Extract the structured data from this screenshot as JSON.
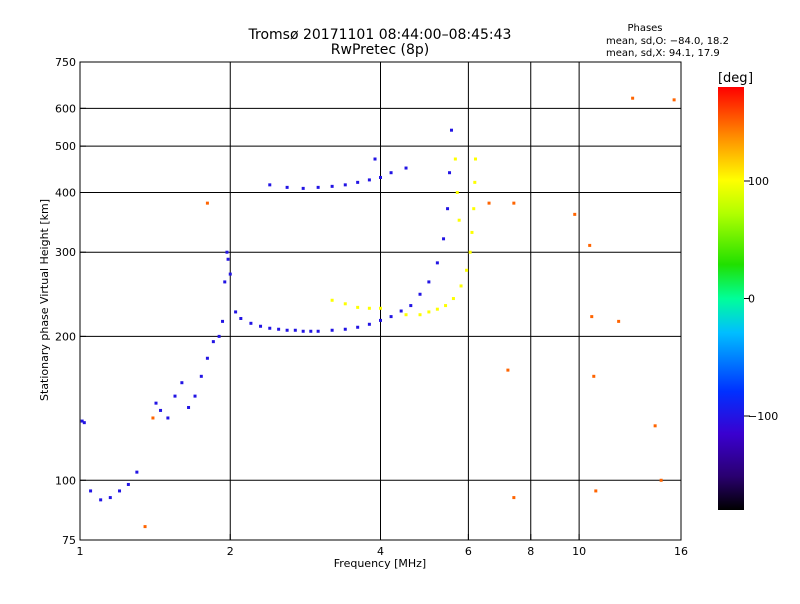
{
  "header": {
    "title": "Tromsø 20171101 08:44:00–08:45:43",
    "subtitle": "RwPretec (8p)"
  },
  "phase_box": {
    "heading": "Phases",
    "line_o": "mean, sd,O: −84.0, 18.2",
    "line_x": "mean, sd,X:  94.1, 17.9"
  },
  "colorbar": {
    "label": "deg",
    "min": -180,
    "max": 180,
    "ticks": [
      {
        "value": 100,
        "label": "100"
      },
      {
        "value": 0,
        "label": "0"
      },
      {
        "value": -100,
        "label": "−100"
      }
    ]
  },
  "chart_data": {
    "type": "scatter",
    "title": "Tromsø 20171101 08:44:00–08:45:43",
    "subtitle": "RwPretec (8p)",
    "xlabel": "Frequency [MHz]",
    "ylabel": "Stationary phase Virtual Height [km]",
    "xscale": "log",
    "yscale": "log",
    "xlim": [
      1,
      16
    ],
    "ylim": [
      75,
      750
    ],
    "grid": true,
    "xticks": [
      {
        "value": 1,
        "label": "1"
      },
      {
        "value": 2,
        "label": "2"
      },
      {
        "value": 4,
        "label": "4"
      },
      {
        "value": 6,
        "label": "6"
      },
      {
        "value": 8,
        "label": "8"
      },
      {
        "value": 10,
        "label": "10"
      },
      {
        "value": 16,
        "label": "16"
      }
    ],
    "xgrid": [
      2,
      4,
      6,
      8,
      10
    ],
    "yticks": [
      {
        "value": 75,
        "label": "75"
      },
      {
        "value": 100,
        "label": "100"
      },
      {
        "value": 200,
        "label": "200"
      },
      {
        "value": 300,
        "label": "300"
      },
      {
        "value": 400,
        "label": "400"
      },
      {
        "value": 500,
        "label": "500"
      },
      {
        "value": 600,
        "label": "600"
      },
      {
        "value": 750,
        "label": "750"
      }
    ],
    "ygrid": [
      100,
      200,
      300,
      400,
      500,
      600
    ],
    "series": [
      {
        "points": [
          [
            1.01,
            133
          ],
          [
            1.02,
            132
          ],
          [
            1.05,
            95
          ],
          [
            1.1,
            91
          ],
          [
            1.15,
            92
          ],
          [
            1.2,
            95
          ],
          [
            1.25,
            98
          ],
          [
            1.3,
            104
          ],
          [
            1.42,
            145
          ],
          [
            1.45,
            140
          ],
          [
            1.5,
            135
          ],
          [
            1.55,
            150
          ],
          [
            1.6,
            160
          ],
          [
            1.65,
            142
          ],
          [
            1.7,
            150
          ],
          [
            1.75,
            165
          ],
          [
            1.8,
            180
          ],
          [
            1.85,
            195
          ],
          [
            1.9,
            200
          ],
          [
            1.93,
            215
          ],
          [
            1.95,
            260
          ],
          [
            1.97,
            300
          ],
          [
            1.98,
            290
          ],
          [
            2.0,
            270
          ],
          [
            2.05,
            225
          ],
          [
            2.1,
            218
          ],
          [
            2.2,
            213
          ],
          [
            2.3,
            210
          ],
          [
            2.4,
            208
          ],
          [
            2.5,
            207
          ],
          [
            2.6,
            206
          ],
          [
            2.7,
            206
          ],
          [
            2.8,
            205
          ],
          [
            2.9,
            205
          ],
          [
            3.0,
            205
          ],
          [
            3.2,
            206
          ],
          [
            3.4,
            207
          ],
          [
            3.6,
            209
          ],
          [
            3.8,
            212
          ],
          [
            4.0,
            216
          ],
          [
            4.2,
            220
          ],
          [
            4.4,
            226
          ],
          [
            4.6,
            232
          ],
          [
            4.8,
            245
          ],
          [
            5.0,
            260
          ],
          [
            5.2,
            285
          ],
          [
            5.35,
            320
          ],
          [
            5.45,
            370
          ],
          [
            5.5,
            440
          ],
          [
            5.55,
            540
          ],
          [
            2.4,
            415
          ],
          [
            2.6,
            410
          ],
          [
            2.8,
            408
          ],
          [
            3.0,
            410
          ],
          [
            3.2,
            412
          ],
          [
            3.4,
            415
          ],
          [
            3.6,
            420
          ],
          [
            3.8,
            425
          ],
          [
            4.0,
            430
          ],
          [
            4.2,
            440
          ],
          [
            4.5,
            450
          ],
          [
            3.9,
            470
          ]
        ],
        "phase": -100
      },
      {
        "points": [
          [
            3.2,
            238
          ],
          [
            3.4,
            234
          ],
          [
            3.6,
            230
          ],
          [
            3.8,
            229
          ],
          [
            4.0,
            229
          ],
          [
            4.5,
            222
          ],
          [
            4.8,
            222
          ],
          [
            5.0,
            225
          ],
          [
            5.2,
            228
          ],
          [
            5.4,
            232
          ],
          [
            5.6,
            240
          ],
          [
            5.8,
            255
          ],
          [
            5.95,
            275
          ],
          [
            6.05,
            300
          ],
          [
            6.1,
            330
          ],
          [
            6.15,
            370
          ],
          [
            6.18,
            420
          ],
          [
            6.2,
            470
          ],
          [
            5.65,
            470
          ],
          [
            5.7,
            400
          ],
          [
            5.75,
            350
          ]
        ],
        "phase": 100
      },
      {
        "points": [
          [
            6.6,
            380
          ],
          [
            7.2,
            170
          ],
          [
            7.4,
            92
          ],
          [
            7.4,
            380
          ],
          [
            9.8,
            360
          ],
          [
            10.5,
            310
          ],
          [
            10.6,
            220
          ],
          [
            10.7,
            165
          ],
          [
            10.8,
            95
          ],
          [
            12,
            215
          ],
          [
            12.8,
            630
          ],
          [
            14.2,
            130
          ],
          [
            14.6,
            100
          ],
          [
            15.5,
            625
          ],
          [
            1.8,
            380
          ],
          [
            1.35,
            80
          ],
          [
            1.4,
            135
          ]
        ],
        "phase": 150
      }
    ]
  }
}
